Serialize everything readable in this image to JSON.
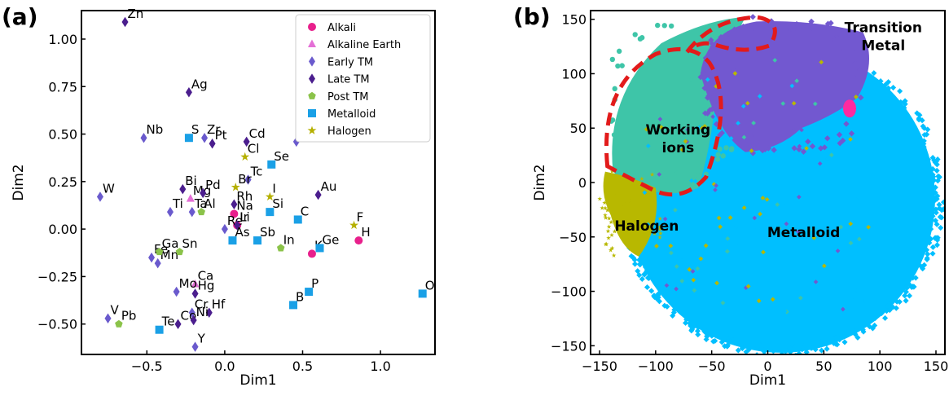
{
  "chart_data": [
    {
      "panel": "(a)",
      "type": "scatter",
      "xlabel": "Dim1",
      "ylabel": "Dim2",
      "xlim": [
        -0.92,
        1.35
      ],
      "ylim": [
        -0.66,
        1.15
      ],
      "xticks": [
        -0.5,
        0.0,
        0.5,
        1.0
      ],
      "xtick_labels": [
        "−0.5",
        "0.0",
        "0.5",
        "1.0"
      ],
      "yticks": [
        -0.5,
        -0.25,
        0.0,
        0.25,
        0.5,
        0.75,
        1.0
      ],
      "ytick_labels": [
        "−0.50",
        "−0.25",
        "0.00",
        "0.25",
        "0.50",
        "0.75",
        "1.00"
      ],
      "legend_position": "top-right",
      "series": [
        {
          "name": "Alkali",
          "marker": "circle",
          "color": "#e8208c",
          "points": [
            {
              "label": "Li",
              "x": 0.08,
              "y": 0.02
            },
            {
              "label": "Na",
              "x": 0.06,
              "y": 0.08
            },
            {
              "label": "K",
              "x": 0.56,
              "y": -0.13
            },
            {
              "label": "H",
              "x": 0.86,
              "y": -0.06
            }
          ]
        },
        {
          "name": "Alkaline Earth",
          "marker": "triangle",
          "color": "#e46fd6",
          "points": [
            {
              "label": "Mg",
              "x": -0.22,
              "y": 0.16
            },
            {
              "label": "Ca",
              "x": -0.19,
              "y": -0.29
            }
          ]
        },
        {
          "name": "Early TM",
          "marker": "diamond",
          "color": "#6a5acd",
          "points": [
            {
              "label": "Nb",
              "x": -0.52,
              "y": 0.48
            },
            {
              "label": "W",
              "x": -0.8,
              "y": 0.17
            },
            {
              "label": "Ti",
              "x": -0.35,
              "y": 0.09
            },
            {
              "label": "Ta",
              "x": -0.21,
              "y": 0.09
            },
            {
              "label": "Zr",
              "x": -0.13,
              "y": 0.48
            },
            {
              "label": "Sc",
              "x": 0.46,
              "y": 0.46
            },
            {
              "label": "Tc",
              "x": 0.15,
              "y": 0.26
            },
            {
              "label": "Fe",
              "x": -0.47,
              "y": -0.15
            },
            {
              "label": "Mn",
              "x": -0.43,
              "y": -0.18
            },
            {
              "label": "Mo",
              "x": -0.31,
              "y": -0.33
            },
            {
              "label": "V",
              "x": -0.75,
              "y": -0.47
            },
            {
              "label": "Cr",
              "x": -0.21,
              "y": -0.44
            },
            {
              "label": "Y",
              "x": -0.19,
              "y": -0.62
            },
            {
              "label": "Re",
              "x": 0.0,
              "y": 0.0
            }
          ]
        },
        {
          "name": "Late TM",
          "marker": "diamond",
          "color": "#4b1e8e",
          "points": [
            {
              "label": "Zn",
              "x": -0.64,
              "y": 1.09
            },
            {
              "label": "Ag",
              "x": -0.23,
              "y": 0.72
            },
            {
              "label": "Pt",
              "x": -0.08,
              "y": 0.45
            },
            {
              "label": "Cd",
              "x": 0.14,
              "y": 0.46
            },
            {
              "label": "Bi",
              "x": -0.27,
              "y": 0.21
            },
            {
              "label": "Pd",
              "x": -0.14,
              "y": 0.19
            },
            {
              "label": "Rh",
              "x": 0.06,
              "y": 0.13
            },
            {
              "label": "Au",
              "x": 0.6,
              "y": 0.18
            },
            {
              "label": "Hg",
              "x": -0.19,
              "y": -0.34
            },
            {
              "label": "Hf",
              "x": -0.1,
              "y": -0.44
            },
            {
              "label": "Co",
              "x": -0.3,
              "y": -0.5
            },
            {
              "label": "Ni",
              "x": -0.2,
              "y": -0.48
            },
            {
              "label": "Ir",
              "x": 0.08,
              "y": 0.02
            }
          ]
        },
        {
          "name": "Post TM",
          "marker": "pentagon",
          "color": "#8bc34a",
          "points": [
            {
              "label": "Al",
              "x": -0.15,
              "y": 0.09
            },
            {
              "label": "Ga",
              "x": -0.42,
              "y": -0.12
            },
            {
              "label": "Sn",
              "x": -0.29,
              "y": -0.12
            },
            {
              "label": "In",
              "x": 0.36,
              "y": -0.1
            },
            {
              "label": "Pb",
              "x": -0.68,
              "y": -0.5
            }
          ]
        },
        {
          "name": "Metalloid",
          "marker": "square",
          "color": "#1aa0e6",
          "points": [
            {
              "label": "S",
              "x": -0.23,
              "y": 0.48
            },
            {
              "label": "Se",
              "x": 0.3,
              "y": 0.34
            },
            {
              "label": "Si",
              "x": 0.29,
              "y": 0.09
            },
            {
              "label": "C",
              "x": 0.47,
              "y": 0.05
            },
            {
              "label": "As",
              "x": 0.05,
              "y": -0.06
            },
            {
              "label": "Sb",
              "x": 0.21,
              "y": -0.06
            },
            {
              "label": "Ge",
              "x": 0.61,
              "y": -0.1
            },
            {
              "label": "P",
              "x": 0.54,
              "y": -0.33
            },
            {
              "label": "B",
              "x": 0.44,
              "y": -0.4
            },
            {
              "label": "O",
              "x": 1.27,
              "y": -0.34
            },
            {
              "label": "Te",
              "x": -0.42,
              "y": -0.53
            }
          ]
        },
        {
          "name": "Halogen",
          "marker": "star",
          "color": "#b5b000",
          "points": [
            {
              "label": "Cl",
              "x": 0.13,
              "y": 0.38
            },
            {
              "label": "Br",
              "x": 0.07,
              "y": 0.22
            },
            {
              "label": "I",
              "x": 0.29,
              "y": 0.17
            },
            {
              "label": "F",
              "x": 0.83,
              "y": 0.02
            }
          ]
        }
      ]
    },
    {
      "panel": "(b)",
      "type": "scatter",
      "xlabel": "Dim1",
      "ylabel": "Dim2",
      "xlim": [
        -158,
        158
      ],
      "ylim": [
        -158,
        158
      ],
      "xticks": [
        -150,
        -100,
        -50,
        0,
        50,
        100,
        150
      ],
      "xtick_labels": [
        "−150",
        "−100",
        "−50",
        "0",
        "50",
        "100",
        "150"
      ],
      "yticks": [
        -150,
        -100,
        -50,
        0,
        50,
        100,
        150
      ],
      "ytick_labels": [
        "−150",
        "−100",
        "−50",
        "0",
        "50",
        "100",
        "150"
      ],
      "series": [
        {
          "name": "Metalloid",
          "color": "#00bfff",
          "note": "largest disk-shaped cluster filling the lower-right of the plot"
        },
        {
          "name": "Transition Metal",
          "color": "#7258d0",
          "note": "upper-center cluster"
        },
        {
          "name": "Working ions",
          "color": "#3ec5a8",
          "note": "upper-left cluster"
        },
        {
          "name": "Halogen",
          "color": "#b8b800",
          "note": "small left cluster"
        },
        {
          "name": "Alkali",
          "color": "#ff2aa0",
          "note": "small spot on the right"
        }
      ],
      "annotations": [
        {
          "text": "Transition\nMetal",
          "x": 103,
          "y": 138
        },
        {
          "text": "Working\nions",
          "x": -80,
          "y": 44
        },
        {
          "text": "Halogen",
          "x": -108,
          "y": -44
        },
        {
          "text": "Metalloid",
          "x": 32,
          "y": -50
        }
      ]
    }
  ]
}
